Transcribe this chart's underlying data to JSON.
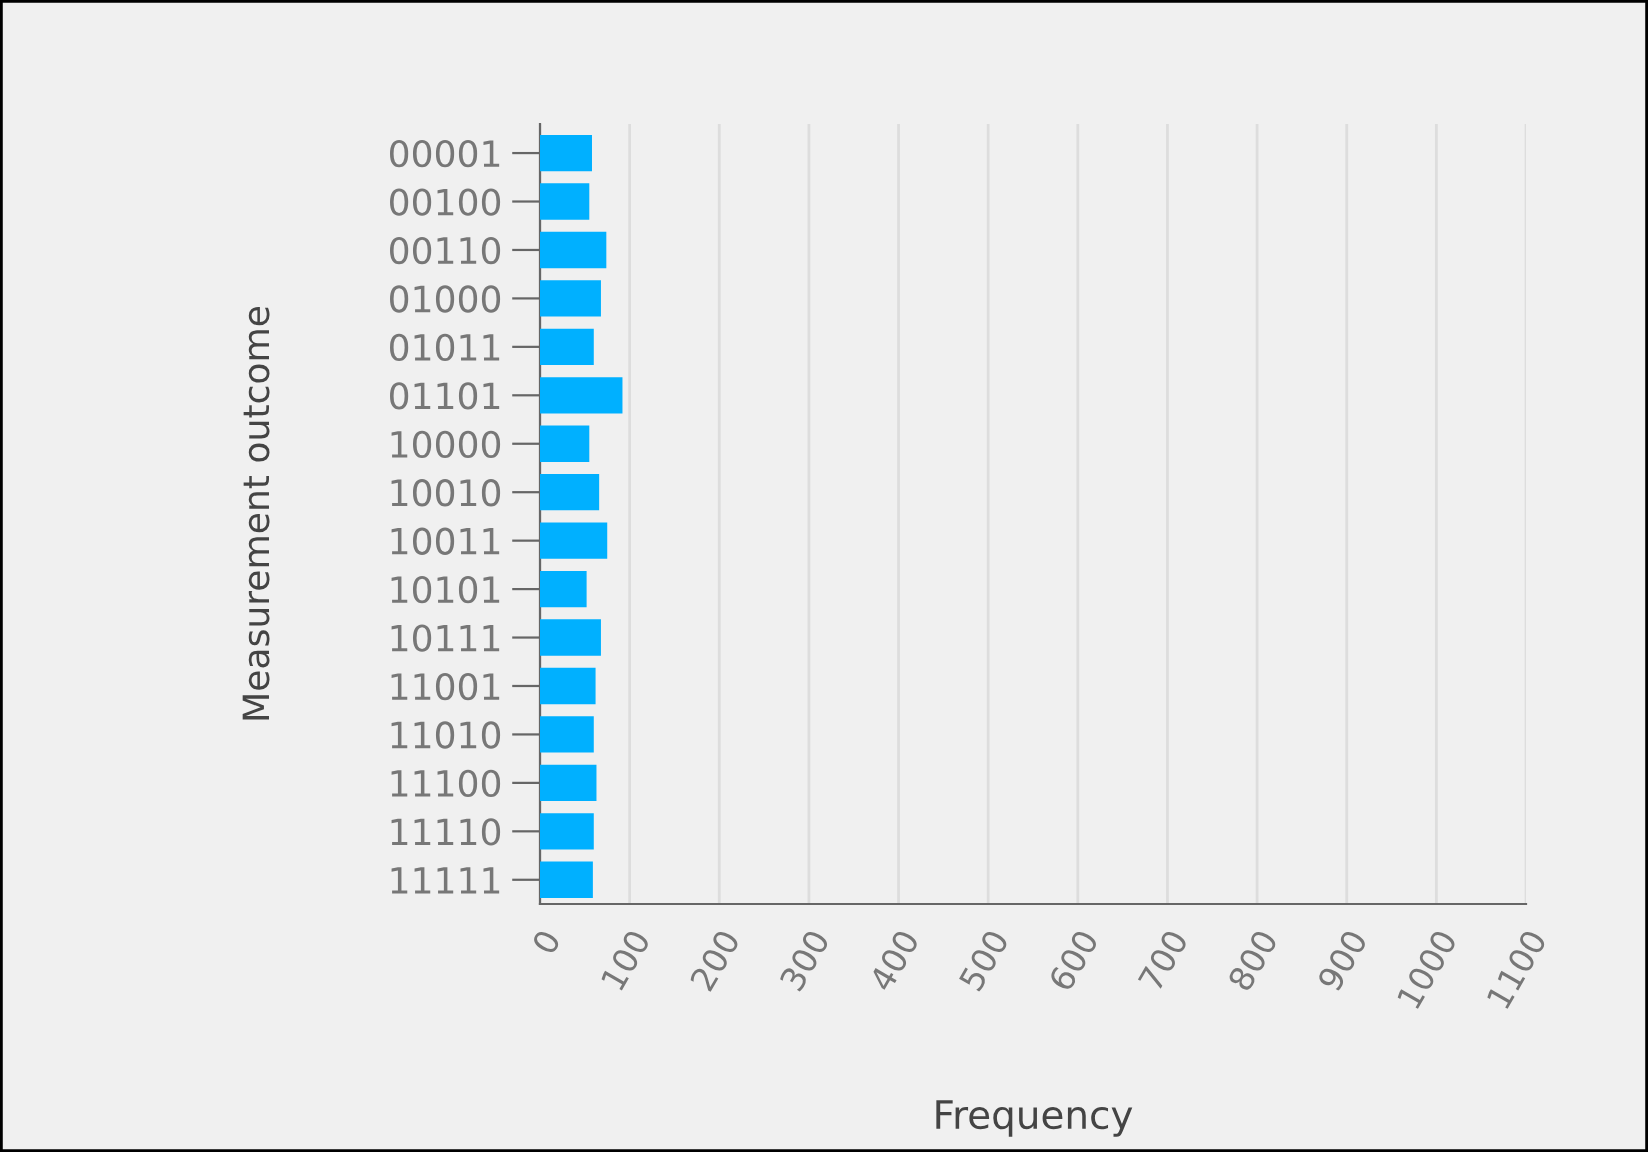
{
  "chart_data": {
    "type": "bar",
    "orientation": "horizontal",
    "categories": [
      "00001",
      "00100",
      "00110",
      "01000",
      "01011",
      "01101",
      "10000",
      "10010",
      "10011",
      "10101",
      "10111",
      "11001",
      "11010",
      "11100",
      "11110",
      "11111"
    ],
    "values": [
      58,
      55,
      74,
      68,
      60,
      92,
      55,
      66,
      75,
      52,
      68,
      62,
      60,
      63,
      60,
      59
    ],
    "color": "#00b0ff",
    "xlabel": "Frequency",
    "ylabel": "Measurement outcome",
    "xlim": [
      0,
      1100
    ],
    "xticks": [
      0,
      100,
      200,
      300,
      400,
      500,
      600,
      700,
      800,
      900,
      1000,
      1100
    ],
    "grid": "x"
  }
}
